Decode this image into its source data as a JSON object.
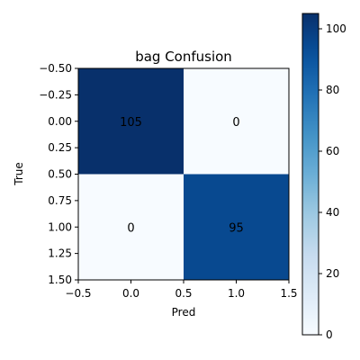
{
  "chart_data": {
    "type": "heatmap",
    "title": "bag Confusion",
    "xlabel": "Pred",
    "ylabel": "True",
    "matrix": [
      [
        105,
        0
      ],
      [
        0,
        95
      ]
    ],
    "cell_labels": [
      [
        "105",
        "0"
      ],
      [
        "0",
        "95"
      ]
    ],
    "colormap": "Blues",
    "color_range": [
      0,
      105
    ],
    "xlim": [
      -0.5,
      1.5
    ],
    "ylim": [
      1.5,
      -0.5
    ],
    "x_ticks": [
      -0.5,
      0.0,
      0.5,
      1.0,
      1.5
    ],
    "x_tick_labels": [
      "−0.5",
      "0.0",
      "0.5",
      "1.0",
      "1.5"
    ],
    "y_ticks": [
      -0.5,
      -0.25,
      0.0,
      0.25,
      0.5,
      0.75,
      1.0,
      1.25,
      1.5
    ],
    "y_tick_labels": [
      "−0.50",
      "−0.25",
      "0.00",
      "0.25",
      "0.50",
      "0.75",
      "1.00",
      "1.25",
      "1.50"
    ],
    "colorbar": {
      "ticks": [
        0,
        20,
        40,
        60,
        80,
        100
      ],
      "tick_labels": [
        "0",
        "20",
        "40",
        "60",
        "80",
        "100"
      ]
    },
    "colors": {
      "low": "#f7fbff",
      "high": "#08306b"
    }
  }
}
